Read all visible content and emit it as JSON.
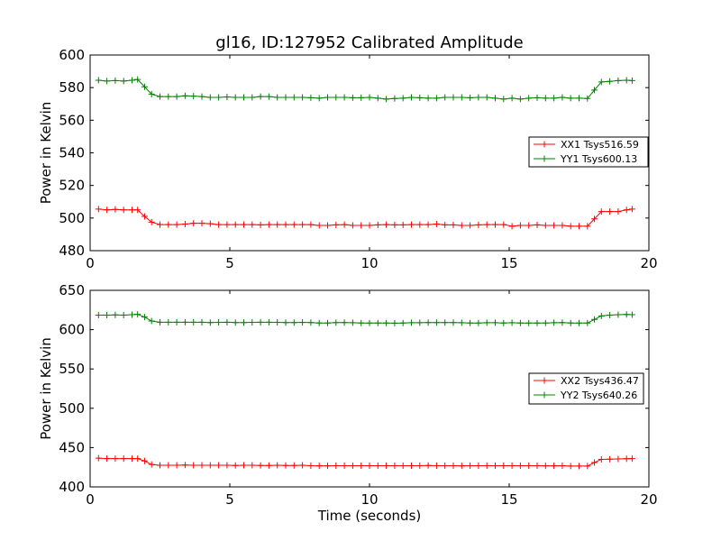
{
  "title": "gl16, ID:127952 Calibrated Amplitude",
  "chart_data": [
    {
      "type": "line",
      "title": "gl16, ID:127952 Calibrated Amplitude",
      "xlabel": "",
      "ylabel": "Power in Kelvin",
      "xlim": [
        0,
        20
      ],
      "ylim": [
        480,
        600
      ],
      "xticks": [
        0,
        5,
        10,
        15,
        20
      ],
      "yticks": [
        480,
        500,
        520,
        540,
        560,
        580,
        600
      ],
      "xtick_labels": [
        "0",
        "5",
        "10",
        "15",
        "20"
      ],
      "ytick_labels": [
        "480",
        "500",
        "520",
        "540",
        "560",
        "580",
        "600"
      ],
      "grid": false,
      "legend_position": "center-right",
      "marker": "plus",
      "x": [
        0.3,
        0.6,
        0.9,
        1.2,
        1.5,
        1.7,
        1.95,
        2.2,
        2.5,
        2.8,
        3.1,
        3.4,
        3.7,
        4.0,
        4.3,
        4.6,
        4.9,
        5.2,
        5.5,
        5.8,
        6.1,
        6.4,
        6.7,
        7.0,
        7.3,
        7.6,
        7.9,
        8.2,
        8.5,
        8.8,
        9.1,
        9.4,
        9.7,
        10.0,
        10.3,
        10.6,
        10.9,
        11.2,
        11.5,
        11.8,
        12.1,
        12.4,
        12.7,
        13.0,
        13.3,
        13.6,
        13.9,
        14.2,
        14.5,
        14.8,
        15.1,
        15.4,
        15.7,
        16.0,
        16.3,
        16.6,
        16.9,
        17.2,
        17.5,
        17.8,
        18.05,
        18.3,
        18.6,
        18.9,
        19.2,
        19.4
      ],
      "series": [
        {
          "name": "XX1 Tsys516.59",
          "color": "#ff0000",
          "values": [
            505.5,
            505.0,
            505.3,
            505.0,
            505.0,
            505.0,
            501.0,
            497.5,
            496.0,
            496.0,
            496.0,
            496.3,
            496.8,
            496.8,
            496.5,
            496.0,
            496.0,
            496.0,
            496.0,
            496.0,
            495.8,
            496.0,
            496.0,
            496.0,
            496.0,
            496.0,
            496.0,
            495.5,
            495.5,
            495.8,
            496.0,
            495.5,
            495.5,
            495.5,
            495.8,
            496.0,
            495.8,
            495.8,
            496.0,
            496.0,
            496.0,
            496.3,
            495.8,
            495.8,
            495.5,
            495.5,
            495.8,
            496.0,
            496.0,
            496.0,
            495.0,
            495.5,
            495.5,
            495.8,
            495.5,
            495.5,
            495.5,
            495.0,
            495.0,
            495.0,
            499.5,
            504.0,
            504.0,
            504.0,
            505.0,
            505.5
          ]
        },
        {
          "name": "YY1 Tsys600.13",
          "color": "#008000",
          "values": [
            584.5,
            584.0,
            584.3,
            584.0,
            584.5,
            585.0,
            580.5,
            576.0,
            574.5,
            574.5,
            574.5,
            575.0,
            574.8,
            574.5,
            574.0,
            574.0,
            574.3,
            574.0,
            574.0,
            574.0,
            574.5,
            574.5,
            574.0,
            574.0,
            574.0,
            574.0,
            573.8,
            573.5,
            574.0,
            574.0,
            574.0,
            573.8,
            573.8,
            574.0,
            573.5,
            573.0,
            573.3,
            573.5,
            574.0,
            573.8,
            573.5,
            573.5,
            574.0,
            574.0,
            574.0,
            573.8,
            574.0,
            574.0,
            573.5,
            573.0,
            573.5,
            573.0,
            573.5,
            573.8,
            573.5,
            573.5,
            574.0,
            573.5,
            573.5,
            573.3,
            578.5,
            583.5,
            583.8,
            584.3,
            584.5,
            584.3
          ]
        }
      ]
    },
    {
      "type": "line",
      "title": "",
      "xlabel": "Time (seconds)",
      "ylabel": "Power in Kelvin",
      "xlim": [
        0,
        20
      ],
      "ylim": [
        400,
        650
      ],
      "xticks": [
        0,
        5,
        10,
        15,
        20
      ],
      "yticks": [
        400,
        450,
        500,
        550,
        600,
        650
      ],
      "xtick_labels": [
        "0",
        "5",
        "10",
        "15",
        "20"
      ],
      "ytick_labels": [
        "400",
        "450",
        "500",
        "550",
        "600",
        "650"
      ],
      "grid": false,
      "legend_position": "center-right",
      "marker": "plus",
      "x": [
        0.3,
        0.6,
        0.9,
        1.2,
        1.5,
        1.7,
        1.95,
        2.2,
        2.5,
        2.8,
        3.1,
        3.4,
        3.7,
        4.0,
        4.3,
        4.6,
        4.9,
        5.2,
        5.5,
        5.8,
        6.1,
        6.4,
        6.7,
        7.0,
        7.3,
        7.6,
        7.9,
        8.2,
        8.5,
        8.8,
        9.1,
        9.4,
        9.7,
        10.0,
        10.3,
        10.6,
        10.9,
        11.2,
        11.5,
        11.8,
        12.1,
        12.4,
        12.7,
        13.0,
        13.3,
        13.6,
        13.9,
        14.2,
        14.5,
        14.8,
        15.1,
        15.4,
        15.7,
        16.0,
        16.3,
        16.6,
        16.9,
        17.2,
        17.5,
        17.8,
        18.05,
        18.3,
        18.6,
        18.9,
        19.2,
        19.4
      ],
      "series": [
        {
          "name": "XX2 Tsys436.47",
          "color": "#ff0000",
          "values": [
            436.5,
            436.0,
            436.0,
            436.0,
            436.0,
            436.0,
            433.0,
            428.5,
            427.5,
            427.5,
            427.5,
            427.8,
            427.5,
            427.5,
            427.5,
            427.5,
            427.5,
            427.3,
            427.5,
            427.5,
            427.3,
            427.3,
            427.5,
            427.3,
            427.3,
            427.5,
            427.0,
            426.8,
            426.8,
            427.0,
            427.0,
            427.0,
            427.0,
            427.0,
            427.0,
            427.0,
            427.0,
            427.0,
            427.0,
            427.0,
            427.3,
            427.0,
            427.0,
            427.0,
            426.8,
            427.0,
            427.0,
            427.0,
            427.0,
            427.0,
            427.0,
            427.0,
            427.0,
            427.0,
            426.8,
            426.8,
            427.0,
            426.5,
            426.5,
            426.5,
            431.0,
            435.0,
            435.3,
            435.5,
            435.8,
            436.0
          ]
        },
        {
          "name": "YY2 Tsys640.26",
          "color": "#008000",
          "values": [
            618.5,
            618.5,
            618.8,
            618.5,
            619.0,
            619.5,
            616.0,
            611.0,
            609.5,
            609.5,
            609.5,
            609.5,
            609.5,
            609.5,
            609.0,
            609.3,
            609.5,
            609.0,
            609.0,
            609.3,
            609.5,
            609.5,
            609.3,
            609.0,
            609.0,
            609.3,
            609.0,
            608.5,
            608.5,
            609.0,
            609.0,
            608.8,
            608.5,
            608.5,
            608.5,
            608.5,
            608.3,
            608.5,
            608.8,
            608.8,
            609.0,
            609.0,
            609.0,
            609.0,
            608.8,
            608.5,
            608.5,
            608.8,
            608.8,
            608.5,
            608.8,
            608.5,
            608.5,
            608.5,
            608.5,
            608.8,
            609.0,
            608.5,
            608.5,
            608.5,
            613.0,
            617.5,
            618.5,
            619.0,
            619.3,
            619.0
          ]
        }
      ]
    }
  ]
}
